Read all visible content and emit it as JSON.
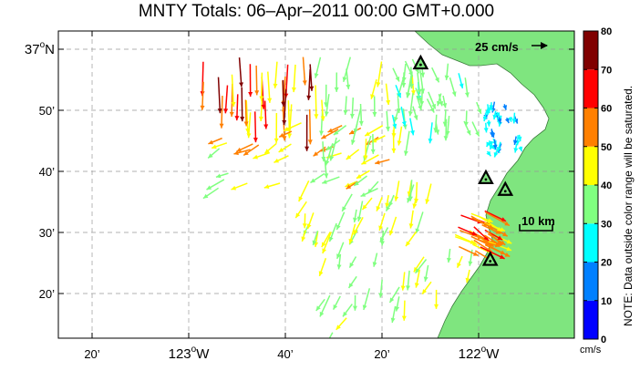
{
  "title": "MNTY Totals: 06–Apr–2011 00:00 GMT+0.000",
  "map": {
    "lat_labels": [
      {
        "deg": "37",
        "sup": "o",
        "hemi": "N",
        "lat": 37.0
      },
      {
        "text": "50’",
        "lat": 36.8333
      },
      {
        "text": "40’",
        "lat": 36.6667
      },
      {
        "text": "30’",
        "lat": 36.5
      },
      {
        "text": "20’",
        "lat": 36.3333
      }
    ],
    "lon_labels": [
      {
        "text": "20’",
        "lon": -123.3333
      },
      {
        "deg": "123",
        "sup": "o",
        "hemi": "W",
        "lon": -123.0
      },
      {
        "text": "40’",
        "lon": -122.6667
      },
      {
        "text": "20’",
        "lon": -122.3333
      },
      {
        "deg": "122",
        "sup": "o",
        "hemi": "W",
        "lon": -122.0
      }
    ],
    "land_color": "#7fe57f",
    "water_color": "#ffffff",
    "grid": "dashed",
    "reference_vector": {
      "label": "25 cm/s",
      "speed_cm_s": 25
    },
    "scale_bar": {
      "label": "10 km",
      "km": 10
    },
    "stations": [
      {
        "lon": -122.2,
        "lat": 36.96
      },
      {
        "lon": -121.975,
        "lat": 36.647
      },
      {
        "lon": -121.908,
        "lat": 36.615
      },
      {
        "lon": -121.96,
        "lat": 36.424
      }
    ]
  },
  "colorbar": {
    "ticks": [
      "0",
      "10",
      "20",
      "30",
      "40",
      "50",
      "60",
      "70",
      "80"
    ],
    "colors": [
      "#0000ff",
      "#0080ff",
      "#00ffff",
      "#80ff80",
      "#ffff00",
      "#ff8000",
      "#ff0000",
      "#800000"
    ],
    "unit": "cm/s",
    "note": "NOTE: Data outside color range will be saturated."
  },
  "chart_data": {
    "type": "vector_field",
    "units": "cm/s",
    "color_range": [
      0,
      80
    ],
    "regions": [
      {
        "lon": [
          -122.95,
          -122.55
        ],
        "lat": [
          36.8,
          36.98
        ],
        "u": [
          -3,
          3
        ],
        "v": [
          -50,
          -35
        ],
        "speed": [
          40,
          78
        ]
      },
      {
        "lon": [
          -122.9,
          -122.3
        ],
        "lat": [
          36.62,
          36.8
        ],
        "u": [
          -25,
          -15
        ],
        "v": [
          -15,
          -5
        ],
        "speed": [
          35,
          55
        ]
      },
      {
        "lon": [
          -122.55,
          -122.18
        ],
        "lat": [
          36.7,
          36.98
        ],
        "u": [
          -10,
          5
        ],
        "v": [
          -35,
          -25
        ],
        "speed": [
          30,
          45
        ]
      },
      {
        "lon": [
          -122.3,
          -122.0
        ],
        "lat": [
          36.8,
          36.98
        ],
        "u": [
          -5,
          10
        ],
        "v": [
          -30,
          -15
        ],
        "speed": [
          25,
          40
        ]
      },
      {
        "lon": [
          -122.6,
          -122.15
        ],
        "lat": [
          36.5,
          36.65
        ],
        "u": [
          -15,
          0
        ],
        "v": [
          -30,
          -15
        ],
        "speed": [
          35,
          50
        ]
      },
      {
        "lon": [
          -122.55,
          -122.0
        ],
        "lat": [
          36.2,
          36.48
        ],
        "u": [
          -15,
          0
        ],
        "v": [
          -30,
          -15
        ],
        "speed": [
          30,
          45
        ]
      },
      {
        "lon": [
          -122.1,
          -121.95
        ],
        "lat": [
          36.45,
          36.56
        ],
        "u": [
          20,
          35
        ],
        "v": [
          -20,
          -10
        ],
        "speed": [
          45,
          70
        ]
      },
      {
        "lon": [
          -121.98,
          -121.85
        ],
        "lat": [
          36.72,
          36.86
        ],
        "u": [
          -5,
          5
        ],
        "v": [
          -15,
          -5
        ],
        "speed": [
          15,
          30
        ]
      }
    ]
  }
}
